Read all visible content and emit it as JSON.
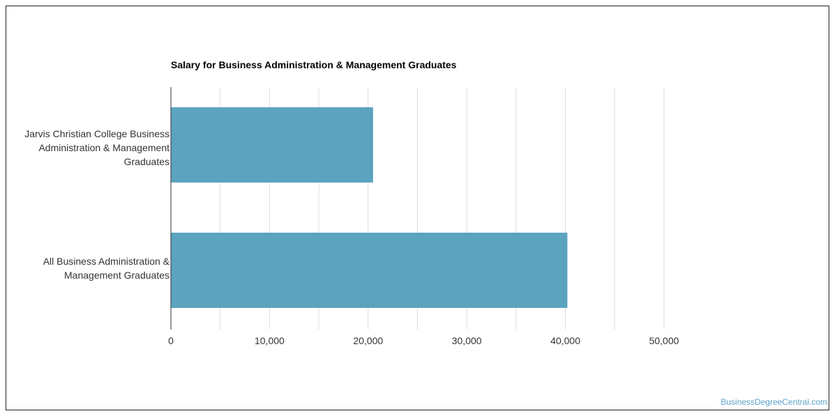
{
  "chart_data": {
    "type": "bar",
    "orientation": "horizontal",
    "title": "Salary for Business Administration & Management Graduates",
    "categories": [
      "Jarvis Christian College Business Administration & Management Graduates",
      "All Business Administration & Management Graduates"
    ],
    "values": [
      20500,
      40200
    ],
    "xlim": [
      0,
      50000
    ],
    "x_ticks": [
      0,
      10000,
      20000,
      30000,
      40000,
      50000
    ],
    "x_tick_labels": [
      "0",
      "10,000",
      "20,000",
      "30,000",
      "40,000",
      "50,000"
    ],
    "grid": true,
    "legend": "none",
    "bar_color": "#5ba3be"
  },
  "labels": {
    "cat0_lines": [
      "Jarvis Christian College Business",
      "Administration & Management",
      "Graduates"
    ],
    "cat1_lines": [
      "All Business Administration &",
      "Management Graduates"
    ]
  },
  "watermark": "BusinessDegreeCentral.com",
  "colors": {
    "bar": "#5ba3be",
    "watermark": "#5ba3c9"
  }
}
